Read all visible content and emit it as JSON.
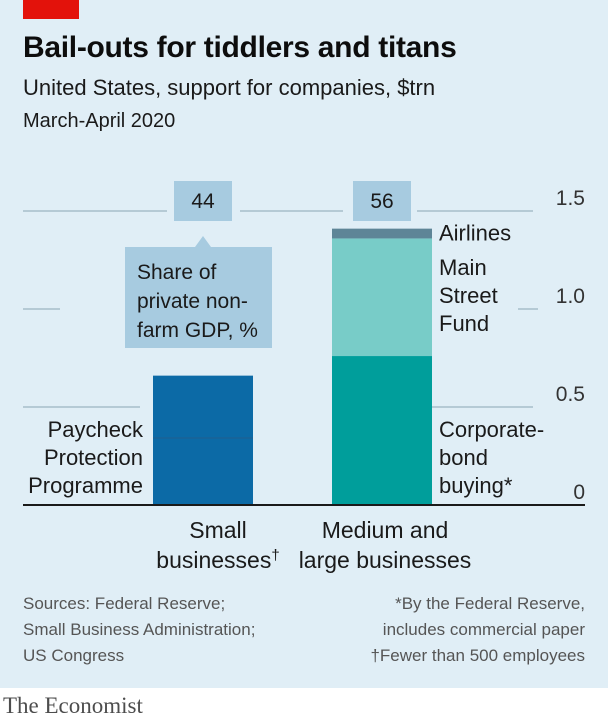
{
  "header": {
    "title": "Bail-outs for tiddlers and titans",
    "subtitle": "United States, support for companies, $trn",
    "date": "March-April 2020"
  },
  "chart_data": {
    "type": "bar",
    "stacked": true,
    "categories": [
      "Small businesses†",
      "Medium and large businesses"
    ],
    "category_lines": [
      [
        "Small",
        "businesses†"
      ],
      [
        "Medium and",
        "large businesses"
      ]
    ],
    "series": [
      {
        "name": "Paycheck Protection Programme",
        "label_lines": [
          "Paycheck",
          "Protection",
          "Programme"
        ],
        "values": [
          0.66,
          0
        ],
        "color": "#0c6aa6"
      },
      {
        "name": "Corporate-bond buying*",
        "label_lines": [
          "Corporate-",
          "bond",
          "buying*"
        ],
        "values": [
          0,
          0.76
        ],
        "color": "#009e9b"
      },
      {
        "name": "Main Street Fund",
        "label_lines": [
          "Main",
          "Street",
          "Fund"
        ],
        "values": [
          0,
          0.6
        ],
        "color": "#78ccc8"
      },
      {
        "name": "Airlines",
        "label_lines": [
          "Airlines"
        ],
        "values": [
          0,
          0.05
        ],
        "color": "#5e8597"
      }
    ],
    "gdp_share": {
      "label_lines": [
        "Share of",
        "private non-",
        "farm GDP, %"
      ],
      "values": [
        "44",
        "56"
      ]
    },
    "y_ticks": [
      {
        "value": 0,
        "label": "0"
      },
      {
        "value": 0.5,
        "label": "0.5"
      },
      {
        "value": 1.0,
        "label": "1.0"
      },
      {
        "value": 1.5,
        "label": "1.5"
      }
    ],
    "ylim": [
      0,
      1.5
    ],
    "grid": true,
    "y_axis_position": "right",
    "legend": "direct labels beside bars"
  },
  "footer": {
    "sources": [
      "Sources: Federal Reserve;",
      "Small Business Administration;",
      "US Congress"
    ],
    "notes": [
      "*By the Federal Reserve,",
      "includes commercial paper",
      "†Fewer than 500 employees"
    ]
  },
  "brand": "The Economist",
  "colors": {
    "accent": "#e3120b",
    "panel": "#e0eef6",
    "callout": "#a7cbe0"
  }
}
